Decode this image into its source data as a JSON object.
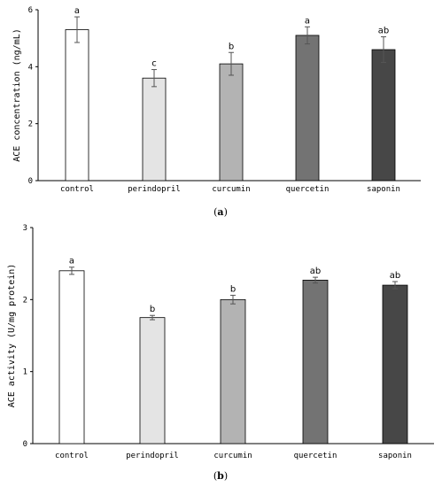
{
  "chart_data": [
    {
      "type": "bar",
      "panel": "(a)",
      "categories": [
        "control",
        "perindopril",
        "curcumin",
        "quercetin",
        "saponin"
      ],
      "values": [
        5.3,
        3.6,
        4.1,
        5.1,
        4.6
      ],
      "errors": [
        0.45,
        0.3,
        0.4,
        0.3,
        0.45
      ],
      "significance": [
        "a",
        "c",
        "b",
        "a",
        "ab"
      ],
      "ylabel": "ACE concentration (ng/mL)",
      "ylim": [
        0,
        6
      ],
      "yticks": [
        "0",
        "2",
        "4",
        "6"
      ],
      "yticks_values": [
        0,
        2,
        4,
        6
      ],
      "colors": [
        "#ffffff",
        "#e4e4e4",
        "#b3b3b3",
        "#737373",
        "#474747"
      ]
    },
    {
      "type": "bar",
      "panel": "(b)",
      "categories": [
        "control",
        "perindopril",
        "curcumin",
        "quercetin",
        "saponin"
      ],
      "values": [
        2.4,
        1.75,
        2.0,
        2.27,
        2.2
      ],
      "errors": [
        0.05,
        0.03,
        0.06,
        0.04,
        0.05
      ],
      "significance": [
        "a",
        "b",
        "b",
        "ab",
        "ab"
      ],
      "ylabel": "ACE activity (U/mg protein)",
      "ylim": [
        0,
        3
      ],
      "yticks": [
        "0",
        "1",
        "2",
        "3"
      ],
      "yticks_values": [
        0,
        1,
        2,
        3
      ],
      "colors": [
        "#ffffff",
        "#e4e4e4",
        "#b3b3b3",
        "#737373",
        "#474747"
      ]
    }
  ]
}
